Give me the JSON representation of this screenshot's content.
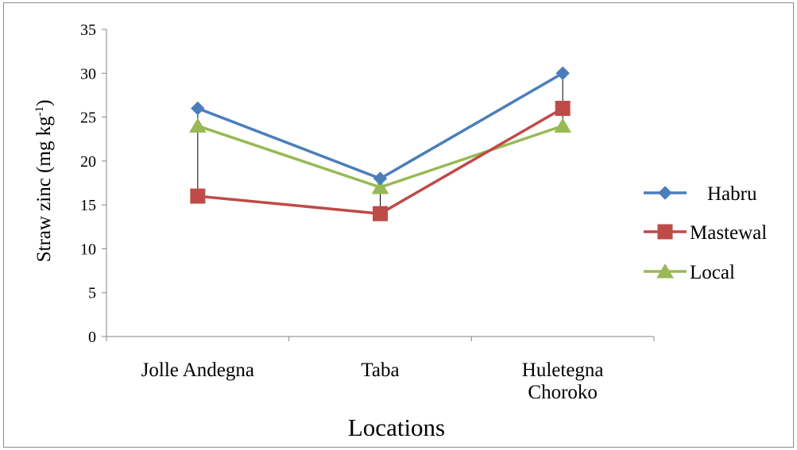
{
  "chart_data": {
    "type": "line",
    "title": "",
    "xlabel": "Locations",
    "ylabel_main": "Straw zinc (mg kg",
    "ylabel_sup": "-1",
    "ylabel_close": ")",
    "categories": [
      [
        "Jolle Andegna"
      ],
      [
        "Taba"
      ],
      [
        "Huletegna",
        "Choroko"
      ]
    ],
    "ylim": [
      0,
      35
    ],
    "yticks": [
      0,
      5,
      10,
      15,
      20,
      25,
      30,
      35
    ],
    "grid": false,
    "legend_position": "right",
    "series": [
      {
        "name": "Habru",
        "values": [
          26,
          18,
          30
        ],
        "color": "#4a7ebb",
        "marker": "diamond"
      },
      {
        "name": "Mastewal",
        "values": [
          16,
          14,
          26
        ],
        "color": "#be4b48",
        "marker": "square"
      },
      {
        "name": "Local",
        "values": [
          24,
          17,
          24
        ],
        "color": "#98b954",
        "marker": "triangle"
      }
    ],
    "range_lines": true
  }
}
